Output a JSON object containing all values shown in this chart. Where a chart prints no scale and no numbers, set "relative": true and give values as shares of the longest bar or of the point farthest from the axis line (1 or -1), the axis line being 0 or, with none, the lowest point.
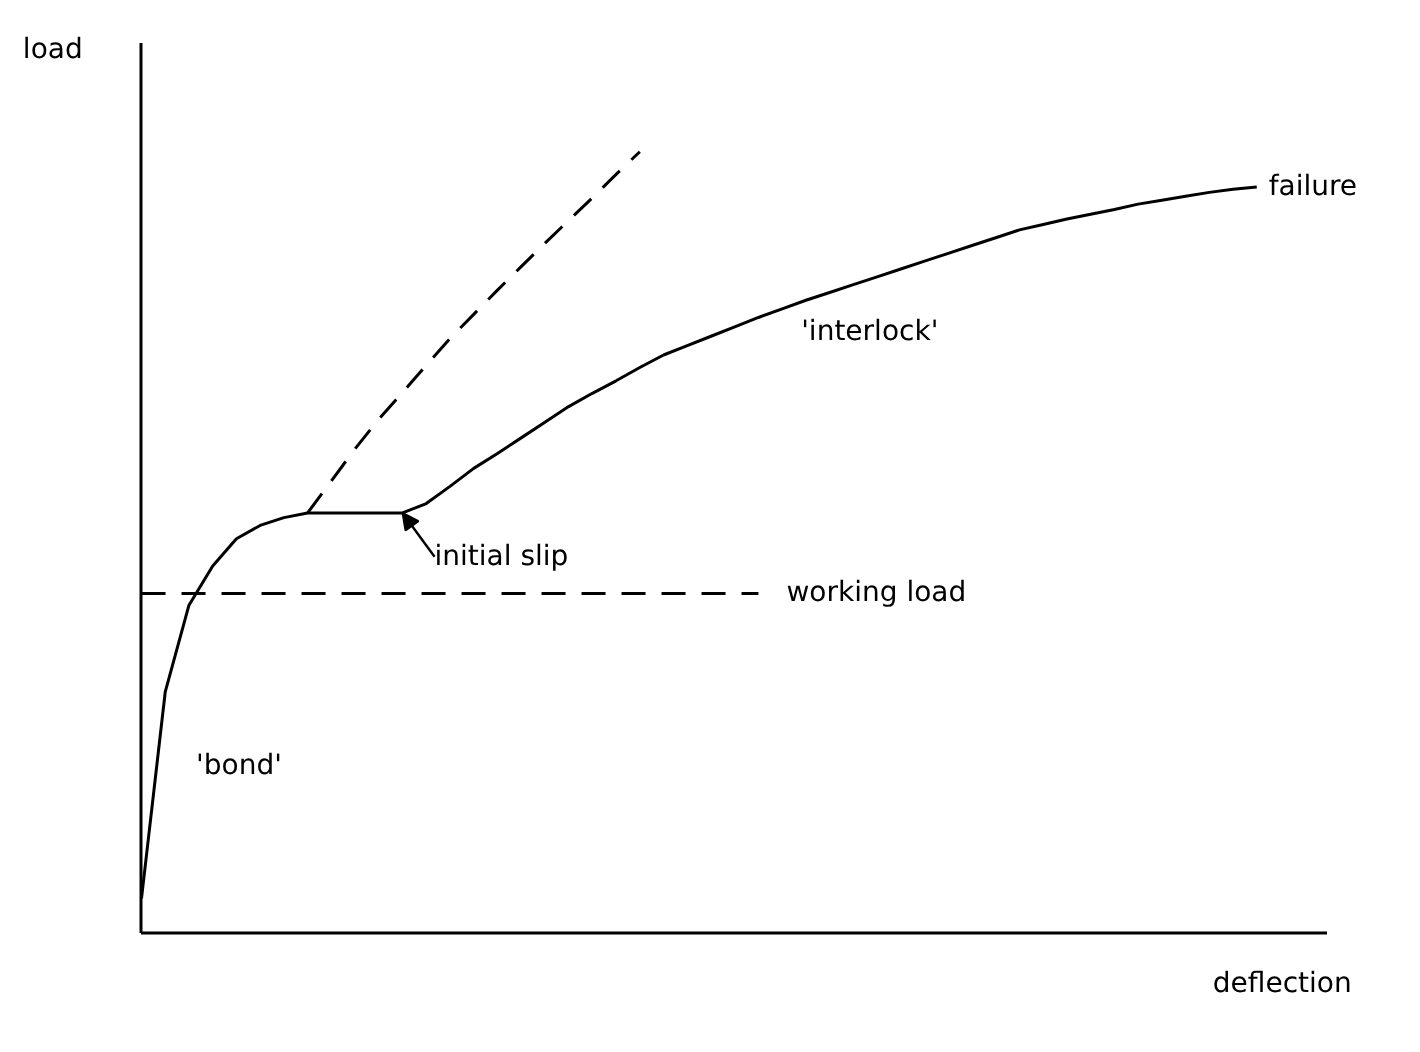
{
  "chart_data": {
    "type": "line",
    "relative": true,
    "xlabel": "deflection",
    "ylabel": "load",
    "grid": false,
    "legend": false,
    "categories": [
      null,
      null,
      null,
      null,
      null,
      null,
      null,
      null,
      null,
      null,
      null,
      null,
      null,
      null,
      null,
      null,
      null,
      null,
      null,
      null,
      null,
      null,
      null,
      null,
      null,
      null,
      null,
      null,
      null,
      null,
      null,
      null,
      null,
      null,
      null,
      null,
      null,
      null,
      null,
      null,
      null,
      null,
      null,
      null,
      null,
      null,
      null,
      null,
      null,
      null,
      null
    ],
    "series": [
      {
        "color": "#000000",
        "line_style": "solid",
        "values": [
          0.045,
          0.309,
          0.42,
          0.47,
          0.505,
          0.522,
          0.532,
          0.538,
          0.538,
          0.538,
          0.538,
          0.538,
          0.55,
          0.572,
          0.595,
          0.614,
          0.634,
          0.654,
          0.674,
          0.691,
          0.707,
          0.724,
          0.74,
          0.752,
          0.764,
          0.776,
          0.788,
          0.799,
          0.81,
          0.82,
          0.83,
          0.84,
          0.85,
          0.86,
          0.87,
          0.88,
          0.89,
          0.9,
          0.907,
          0.914,
          0.92,
          0.926,
          0.933,
          0.938,
          0.943,
          0.948,
          0.952,
          0.955,
          null,
          null,
          null
        ]
      },
      {
        "color": "#000000",
        "line_style": "dashed",
        "values": [
          null,
          null,
          null,
          null,
          null,
          null,
          null,
          0.538,
          0.579,
          0.62,
          0.658,
          0.692,
          0.727,
          0.761,
          0.792,
          0.823,
          0.853,
          0.883,
          0.912,
          0.941,
          0.971,
          1.0,
          null,
          null,
          null,
          null,
          null,
          null,
          null,
          null,
          null,
          null,
          null,
          null,
          null,
          null,
          null,
          null,
          null,
          null,
          null,
          null,
          null,
          null,
          null,
          null,
          null,
          null,
          null,
          null,
          null
        ]
      },
      {
        "name": "working load",
        "color": "#000000",
        "line_style": "dashed",
        "values": [
          0.435,
          0.435,
          0.435,
          0.435,
          0.435,
          0.435,
          0.435,
          0.435,
          0.435,
          0.435,
          0.435,
          0.435,
          0.435,
          0.435,
          0.435,
          0.435,
          0.435,
          0.435,
          0.435,
          0.435,
          0.435,
          0.435,
          0.435,
          0.435,
          0.435,
          0.435,
          0.435,
          null,
          null,
          null,
          null,
          null,
          null,
          null,
          null,
          null,
          null,
          null,
          null,
          null,
          null,
          null,
          null,
          null,
          null,
          null,
          null,
          null,
          null,
          null,
          null
        ]
      }
    ],
    "annotations": [
      "failure",
      "'interlock'",
      "'bond'",
      "initial slip"
    ]
  }
}
